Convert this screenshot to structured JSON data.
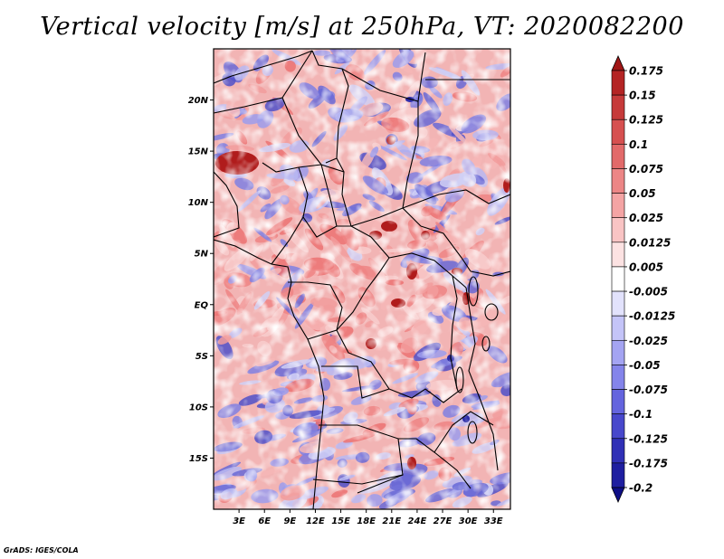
{
  "title": "Vertical velocity [m/s] at 250hPa, VT: 2020082200",
  "footer": "GrADS: IGES/COLA",
  "map": {
    "lon_range": [
      0,
      35
    ],
    "lat_range": [
      -20,
      25
    ],
    "lat_ticks": [
      {
        "value": 20,
        "label": "20N"
      },
      {
        "value": 15,
        "label": "15N"
      },
      {
        "value": 10,
        "label": "10N"
      },
      {
        "value": 5,
        "label": "5N"
      },
      {
        "value": 0,
        "label": "EQ"
      },
      {
        "value": -5,
        "label": "5S"
      },
      {
        "value": -10,
        "label": "10S"
      },
      {
        "value": -15,
        "label": "15S"
      }
    ],
    "lon_ticks": [
      {
        "value": 3,
        "label": "3E"
      },
      {
        "value": 6,
        "label": "6E"
      },
      {
        "value": 9,
        "label": "9E"
      },
      {
        "value": 12,
        "label": "12E"
      },
      {
        "value": 15,
        "label": "15E"
      },
      {
        "value": 18,
        "label": "18E"
      },
      {
        "value": 21,
        "label": "21E"
      },
      {
        "value": 24,
        "label": "24E"
      },
      {
        "value": 27,
        "label": "27E"
      },
      {
        "value": 30,
        "label": "30E"
      },
      {
        "value": 33,
        "label": "33E"
      }
    ]
  },
  "colorbar": {
    "labels": [
      "0.175",
      "0.15",
      "0.125",
      "0.1",
      "0.075",
      "0.05",
      "0.025",
      "0.0125",
      "0.005",
      "-0.005",
      "-0.0125",
      "-0.025",
      "-0.05",
      "-0.075",
      "-0.1",
      "-0.125",
      "-0.175",
      "-0.2"
    ],
    "colors": [
      "#a01616",
      "#b42424",
      "#c63a3a",
      "#d65050",
      "#e26a6a",
      "#ec8686",
      "#f4a4a4",
      "#f9c4c4",
      "#fce2e2",
      "#ffffff",
      "#e2e2fc",
      "#c4c4f8",
      "#a4a4f2",
      "#8484ea",
      "#6464de",
      "#4848cc",
      "#3030b6",
      "#1e1ea0",
      "#0e0e86"
    ]
  }
}
